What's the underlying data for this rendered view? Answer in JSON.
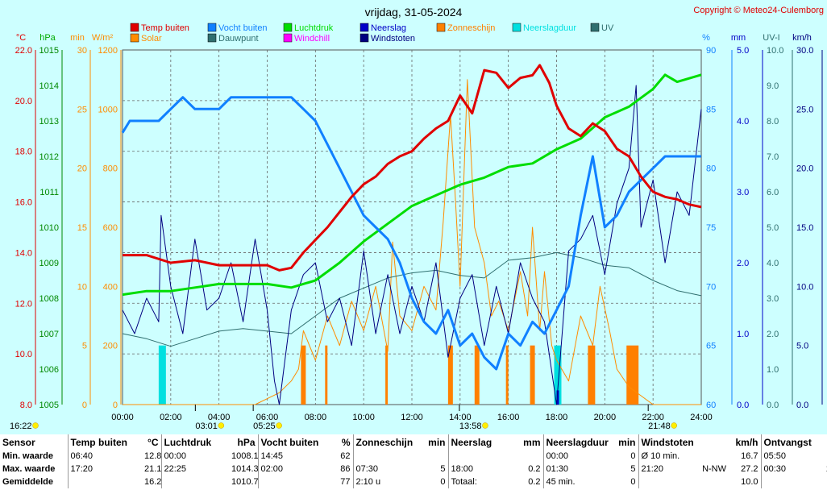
{
  "header": {
    "title": "vrijdag, 31-05-2024",
    "copyright": "Copyright © Meteo24-Culemborg"
  },
  "colors": {
    "background": "#cdffff",
    "temp": "#e00000",
    "humidity": "#1080ff",
    "pressure": "#00dd00",
    "solar": "#ff8c00",
    "dewpoint": "#2f6f6f",
    "windchill": "#ff00ff",
    "rain": "#0000c8",
    "gust": "#000080",
    "sunshine": "#ff8000",
    "rain_duration": "#00e0e0",
    "uv": "#2f6f6f"
  },
  "legend": [
    {
      "label": "Temp buiten",
      "color": "#e00000"
    },
    {
      "label": "Vocht buiten",
      "color": "#1080ff"
    },
    {
      "label": "Luchtdruk",
      "color": "#00dd00"
    },
    {
      "label": "Neerslag",
      "color": "#0000c8"
    },
    {
      "label": "Zonneschijn",
      "color": "#ff8000"
    },
    {
      "label": "Neerslagduur",
      "color": "#00e0e0"
    },
    {
      "label": "UV",
      "color": "#2f6f6f"
    },
    {
      "label": "Solar",
      "color": "#ff8c00"
    },
    {
      "label": "Dauwpunt",
      "color": "#2f6f6f"
    },
    {
      "label": "Windchill",
      "color": "#ff00ff"
    },
    {
      "label": "Windstoten",
      "color": "#000080"
    }
  ],
  "axes": {
    "units_left": [
      "°C",
      "hPa",
      "min",
      "W/m²"
    ],
    "units_right": [
      "%",
      "mm",
      "UV-I",
      "km/h"
    ],
    "temp_ticks": [
      "8.0",
      "10.0",
      "12.0",
      "14.0",
      "16.0",
      "18.0",
      "20.0",
      "22.0"
    ],
    "pressure_ticks": [
      "1005",
      "1006",
      "1007",
      "1008",
      "1009",
      "1010",
      "1011",
      "1012",
      "1013",
      "1014",
      "1015"
    ],
    "minutes_ticks": [
      "0",
      "5",
      "10",
      "15",
      "20",
      "25",
      "30"
    ],
    "solar_ticks": [
      "0",
      "200",
      "400",
      "600",
      "800",
      "1000",
      "1200"
    ],
    "humidity_ticks": [
      "60",
      "65",
      "70",
      "75",
      "80",
      "85",
      "90"
    ],
    "rain_ticks": [
      "0.0",
      "1.0",
      "2.0",
      "3.0",
      "4.0",
      "5.0"
    ],
    "uv_ticks": [
      "0.0",
      "1.0",
      "2.0",
      "3.0",
      "4.0",
      "5.0",
      "6.0",
      "7.0",
      "8.0",
      "9.0",
      "10.0"
    ],
    "wind_ticks": [
      "0.0",
      "5.0",
      "10.0",
      "15.0",
      "20.0",
      "25.0",
      "30.0"
    ],
    "x_ticks": [
      "00:00",
      "02:00",
      "04:00",
      "06:00",
      "08:00",
      "10:00",
      "12:00",
      "14:00",
      "16:00",
      "18:00",
      "20:00",
      "22:00",
      "24:00"
    ]
  },
  "time_markers": [
    {
      "label": "16:22",
      "hour": 0
    },
    {
      "label": "03:01",
      "hour": 3.02
    },
    {
      "label": "05:25",
      "hour": 5.42
    },
    {
      "label": "13:58",
      "hour": 13.97
    },
    {
      "label": "21:48",
      "hour": 21.8
    }
  ],
  "chart_data": {
    "type": "line",
    "title": "vrijdag, 31-05-2024",
    "x_unit": "hour of day",
    "xlim": [
      0,
      24
    ],
    "grid": true,
    "legend_position": "top",
    "series": [
      {
        "name": "Temp buiten",
        "unit": "°C",
        "ylim": [
          8,
          22
        ],
        "x": [
          0,
          1,
          2,
          3,
          4,
          5,
          6,
          6.5,
          7,
          7.5,
          8,
          8.5,
          9,
          9.5,
          10,
          10.5,
          11,
          11.5,
          12,
          12.5,
          13,
          13.5,
          14,
          14.5,
          15,
          15.5,
          16,
          16.5,
          17,
          17.3,
          17.7,
          18,
          18.5,
          19,
          19.5,
          20,
          20.5,
          21,
          21.5,
          22,
          22.5,
          23,
          23.5,
          24
        ],
        "y": [
          13.9,
          13.9,
          13.6,
          13.7,
          13.5,
          13.5,
          13.5,
          13.3,
          13.4,
          14.0,
          14.5,
          15.0,
          15.6,
          16.2,
          16.7,
          17.0,
          17.5,
          17.8,
          18.0,
          18.5,
          18.9,
          19.2,
          20.2,
          19.5,
          21.2,
          21.1,
          20.5,
          20.9,
          21.0,
          21.4,
          20.7,
          19.8,
          18.9,
          18.6,
          19.1,
          18.8,
          18.1,
          17.8,
          17.0,
          16.4,
          16.2,
          16.1,
          15.9,
          15.8
        ]
      },
      {
        "name": "Vocht buiten",
        "unit": "%",
        "ylim": [
          60,
          90
        ],
        "x": [
          0,
          0.3,
          1.5,
          2,
          2.5,
          3,
          4,
          4.5,
          5,
          6,
          7,
          7.5,
          8,
          8.5,
          9,
          9.5,
          10,
          10.5,
          11,
          11.5,
          12,
          12.5,
          13,
          13.5,
          14,
          14.5,
          15,
          15.5,
          16,
          16.5,
          17,
          17.5,
          18,
          18.5,
          19,
          19.5,
          20,
          20.5,
          21,
          21.5,
          22,
          22.5,
          23,
          24
        ],
        "y": [
          83,
          84,
          84,
          85,
          86,
          85,
          85,
          86,
          86,
          86,
          86,
          85,
          84,
          82,
          80,
          78,
          76,
          75,
          74,
          72,
          69,
          67,
          66,
          68,
          65,
          66,
          64,
          63,
          66,
          65,
          67,
          66,
          68,
          70,
          76,
          81,
          75,
          76,
          78,
          79,
          80,
          81,
          81,
          81
        ]
      },
      {
        "name": "Luchtdruk",
        "unit": "hPa",
        "ylim": [
          1005,
          1015
        ],
        "x": [
          0,
          1,
          2,
          3,
          4,
          5,
          6,
          7,
          8,
          9,
          10,
          11,
          12,
          13,
          14,
          15,
          16,
          17,
          18,
          19,
          20,
          21,
          22,
          22.5,
          23,
          24
        ],
        "y": [
          1008.1,
          1008.2,
          1008.2,
          1008.3,
          1008.4,
          1008.4,
          1008.4,
          1008.3,
          1008.5,
          1009.0,
          1009.6,
          1010.1,
          1010.6,
          1010.9,
          1011.2,
          1011.4,
          1011.7,
          1011.8,
          1012.2,
          1012.5,
          1013.1,
          1013.4,
          1013.9,
          1014.3,
          1014.1,
          1014.3
        ]
      },
      {
        "name": "Dauwpunt",
        "unit": "°C",
        "ylim": [
          8,
          22
        ],
        "x": [
          0,
          1,
          2,
          3,
          4,
          5,
          6,
          7,
          8,
          9,
          10,
          11,
          12,
          13,
          14,
          15,
          16,
          17,
          18,
          19,
          20,
          21,
          22,
          23,
          24
        ],
        "y": [
          10.8,
          10.6,
          10.3,
          10.6,
          10.9,
          11.0,
          10.9,
          10.8,
          11.5,
          12.2,
          12.6,
          13.0,
          13.2,
          13.3,
          13.1,
          13.0,
          13.7,
          13.8,
          14.0,
          13.8,
          13.5,
          13.4,
          12.9,
          12.5,
          12.3
        ]
      },
      {
        "name": "Windstoten",
        "unit": "km/h",
        "ylim": [
          0,
          30
        ],
        "x": [
          0,
          0.5,
          1,
          1.5,
          1.6,
          2,
          2.5,
          3,
          3.5,
          4,
          4.5,
          5,
          5.5,
          6,
          6.3,
          6.5,
          7,
          7.5,
          8,
          8.5,
          9,
          9.5,
          10,
          10.5,
          11,
          11.5,
          12,
          12.5,
          13,
          13.5,
          14,
          14.5,
          15,
          15.5,
          16,
          16.5,
          17,
          17.5,
          18,
          18.5,
          19,
          19.5,
          20,
          20.5,
          21,
          21.3,
          21.5,
          22,
          22.5,
          23,
          23.5,
          24
        ],
        "y": [
          8,
          6,
          9,
          7,
          16,
          10,
          6,
          14,
          8,
          9,
          12,
          7,
          14,
          8,
          2,
          0,
          8,
          11,
          12,
          7,
          9,
          5,
          13,
          6,
          11,
          6,
          10,
          7,
          12,
          4,
          9,
          11,
          5,
          10,
          6,
          12,
          9,
          7,
          0,
          13,
          14,
          16,
          11,
          17,
          20,
          27,
          15,
          19,
          12,
          18,
          16,
          25
        ]
      },
      {
        "name": "Solar",
        "unit": "W/m²",
        "ylim": [
          0,
          1200
        ],
        "x": [
          0,
          5.5,
          6,
          6.5,
          7,
          7.3,
          7.5,
          8,
          8.5,
          9,
          9.5,
          10,
          10.5,
          11,
          11.2,
          11.5,
          12,
          12.5,
          13,
          13.3,
          13.6,
          13.8,
          14,
          14.3,
          14.6,
          15,
          15.3,
          15.6,
          16,
          16.5,
          16.8,
          17,
          17.3,
          17.5,
          17.8,
          18,
          18.5,
          19,
          19.5,
          19.8,
          20.2,
          20.5,
          21,
          21.5,
          22,
          24
        ],
        "y": [
          0,
          0,
          20,
          40,
          80,
          120,
          250,
          150,
          300,
          200,
          350,
          250,
          400,
          180,
          550,
          300,
          250,
          400,
          320,
          620,
          980,
          700,
          400,
          1100,
          600,
          480,
          300,
          350,
          250,
          450,
          300,
          600,
          250,
          450,
          200,
          150,
          80,
          300,
          200,
          400,
          250,
          120,
          60,
          30,
          0,
          0
        ]
      }
    ],
    "bars": [
      {
        "name": "Zonneschijn",
        "unit": "min",
        "intervals": [
          [
            7.4,
            7.6
          ],
          [
            8.4,
            8.5
          ],
          [
            10.9,
            11.0
          ],
          [
            13.5,
            13.7
          ],
          [
            14.6,
            14.8
          ],
          [
            15.9,
            16.0
          ],
          [
            16.9,
            17.1
          ],
          [
            19.3,
            19.6
          ],
          [
            20.9,
            21.4
          ]
        ],
        "value": 5
      },
      {
        "name": "Neerslagduur",
        "unit": "min",
        "intervals": [
          [
            1.5,
            1.8
          ],
          [
            17.9,
            18.2
          ]
        ],
        "value": 5
      },
      {
        "name": "Neerslag",
        "unit": "mm",
        "intervals": [
          [
            18.0,
            18.1
          ]
        ],
        "value": 0.2
      }
    ]
  },
  "summary": {
    "headers": [
      {
        "label": "Sensor",
        "unit": ""
      },
      {
        "label": "Temp buiten",
        "unit": "°C"
      },
      {
        "label": "Luchtdruk",
        "unit": "hPa"
      },
      {
        "label": "Vocht buiten",
        "unit": "%"
      },
      {
        "label": "Zonneschijn",
        "unit": "min"
      },
      {
        "label": "Neerslag",
        "unit": "mm"
      },
      {
        "label": "Neerslagduur",
        "unit": "min"
      },
      {
        "label": "Windstoten",
        "unit": "km/h"
      },
      {
        "label": "Ontvangst",
        "unit": "%"
      }
    ],
    "rows": [
      {
        "label": "Min. waarde",
        "cells": [
          [
            "06:40",
            "",
            "12.8"
          ],
          [
            "00:00",
            "",
            "1008.1"
          ],
          [
            "14:45",
            "",
            "62"
          ],
          [
            "",
            "",
            ""
          ],
          [
            "",
            "",
            ""
          ],
          [
            "00:00",
            "",
            "0"
          ],
          [
            "Ø 10 min.",
            "",
            "16.7"
          ],
          [
            "05:50",
            "",
            "94"
          ]
        ]
      },
      {
        "label": "Max. waarde",
        "cells": [
          [
            "17:20",
            "",
            "21.1"
          ],
          [
            "22:25",
            "",
            "1014.3"
          ],
          [
            "02:00",
            "",
            "86"
          ],
          [
            "07:30",
            "",
            "5"
          ],
          [
            "18:00",
            "",
            "0.2"
          ],
          [
            "01:30",
            "",
            "5"
          ],
          [
            "21:20",
            "N-NW",
            "27.2"
          ],
          [
            "00:30",
            "",
            "100"
          ]
        ]
      },
      {
        "label": "Gemiddelde",
        "cells": [
          [
            "",
            "",
            "16.27"
          ],
          [
            "",
            "",
            "1010.7"
          ],
          [
            "",
            "",
            "77"
          ],
          [
            "2:10 u",
            "",
            "0"
          ],
          [
            "Totaal:",
            "",
            "0.2"
          ],
          [
            "45 min.",
            "",
            "0"
          ],
          [
            "",
            "",
            "10.0"
          ],
          [
            "",
            "",
            "98"
          ]
        ]
      }
    ]
  }
}
